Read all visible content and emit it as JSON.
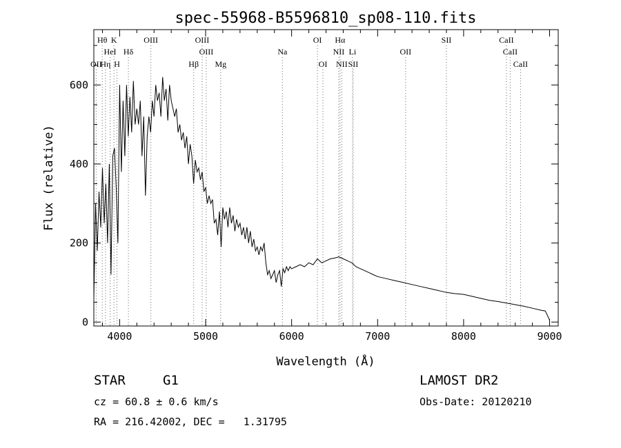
{
  "chart_data": {
    "type": "line",
    "title": "spec-55968-B5596810_sp08-110.fits",
    "xlabel": "Wavelength (Å)",
    "ylabel": "Flux (relative)",
    "xlim": [
      3700,
      9100
    ],
    "ylim": [
      -10,
      740
    ],
    "x_ticks": [
      4000,
      5000,
      6000,
      7000,
      8000,
      9000
    ],
    "y_ticks": [
      0,
      200,
      400,
      600
    ],
    "grid": false,
    "series": [
      {
        "x": [
          3700,
          3720,
          3740,
          3760,
          3780,
          3800,
          3820,
          3840,
          3860,
          3880,
          3900,
          3920,
          3940,
          3960,
          3980,
          4000,
          4020,
          4040,
          4060,
          4080,
          4100,
          4120,
          4140,
          4160,
          4180,
          4200,
          4220,
          4240,
          4260,
          4280,
          4300,
          4320,
          4340,
          4360,
          4380,
          4400,
          4420,
          4440,
          4460,
          4480,
          4500,
          4520,
          4540,
          4560,
          4580,
          4600,
          4620,
          4640,
          4660,
          4680,
          4700,
          4720,
          4740,
          4760,
          4780,
          4800,
          4820,
          4840,
          4860,
          4880,
          4900,
          4920,
          4940,
          4960,
          4980,
          5000,
          5020,
          5040,
          5060,
          5080,
          5100,
          5120,
          5140,
          5160,
          5180,
          5200,
          5220,
          5240,
          5260,
          5280,
          5300,
          5320,
          5340,
          5360,
          5380,
          5400,
          5420,
          5440,
          5460,
          5480,
          5500,
          5520,
          5540,
          5560,
          5580,
          5600,
          5620,
          5640,
          5660,
          5680,
          5700,
          5720,
          5740,
          5760,
          5780,
          5800,
          5820,
          5840,
          5860,
          5880,
          5900,
          5920,
          5940,
          5960,
          5980,
          6000,
          6050,
          6100,
          6150,
          6200,
          6250,
          6300,
          6350,
          6400,
          6450,
          6500,
          6550,
          6600,
          6650,
          6700,
          6750,
          6800,
          6850,
          6900,
          6950,
          7000,
          7100,
          7200,
          7300,
          7400,
          7500,
          7600,
          7700,
          7800,
          7900,
          8000,
          8100,
          8200,
          8300,
          8400,
          8500,
          8550,
          8600,
          8650,
          8700,
          8800,
          8900,
          8950,
          9000
        ],
        "y": [
          60,
          300,
          180,
          330,
          240,
          390,
          250,
          350,
          200,
          400,
          120,
          420,
          440,
          340,
          200,
          600,
          380,
          560,
          420,
          600,
          470,
          570,
          480,
          610,
          500,
          540,
          500,
          560,
          420,
          520,
          320,
          470,
          520,
          480,
          560,
          520,
          600,
          560,
          580,
          520,
          620,
          560,
          590,
          510,
          600,
          560,
          540,
          520,
          540,
          480,
          500,
          460,
          480,
          440,
          470,
          400,
          450,
          420,
          350,
          410,
          380,
          390,
          360,
          380,
          330,
          340,
          300,
          320,
          300,
          310,
          250,
          260,
          220,
          280,
          190,
          290,
          260,
          280,
          240,
          290,
          250,
          270,
          230,
          260,
          240,
          250,
          220,
          240,
          210,
          240,
          200,
          230,
          190,
          210,
          180,
          190,
          170,
          190,
          180,
          200,
          150,
          120,
          130,
          110,
          120,
          130,
          100,
          120,
          130,
          90,
          135,
          125,
          140,
          130,
          140,
          135,
          140,
          145,
          140,
          150,
          145,
          160,
          150,
          155,
          160,
          162,
          165,
          160,
          155,
          150,
          140,
          135,
          130,
          125,
          120,
          115,
          110,
          105,
          100,
          95,
          90,
          85,
          80,
          75,
          72,
          70,
          65,
          60,
          55,
          52,
          48,
          46,
          44,
          42,
          40,
          35,
          30,
          28,
          5
        ]
      }
    ],
    "line_markers": [
      {
        "label": "Hθ",
        "x": 3798,
        "row": 1
      },
      {
        "label": "K",
        "x": 3934,
        "row": 1
      },
      {
        "label": "HeI",
        "x": 3889,
        "row": 2
      },
      {
        "label": "Hδ",
        "x": 4102,
        "row": 2
      },
      {
        "label": "OII",
        "x": 3727,
        "row": 3
      },
      {
        "label": "Hη",
        "x": 3835,
        "row": 3
      },
      {
        "label": "H",
        "x": 3969,
        "row": 3
      },
      {
        "label": "OIII",
        "x": 4363,
        "row": 1
      },
      {
        "label": "OIII",
        "x": 4959,
        "row": 1
      },
      {
        "label": "OIII",
        "x": 5007,
        "row": 2
      },
      {
        "label": "Hβ",
        "x": 4861,
        "row": 3
      },
      {
        "label": "Mg",
        "x": 5175,
        "row": 3
      },
      {
        "label": "Na",
        "x": 5893,
        "row": 2
      },
      {
        "label": "OI",
        "x": 6300,
        "row": 1
      },
      {
        "label": "OI",
        "x": 6364,
        "row": 3
      },
      {
        "label": "Hα",
        "x": 6563,
        "row": 1
      },
      {
        "label": "NII",
        "x": 6548,
        "row": 2
      },
      {
        "label": "Li",
        "x": 6708,
        "row": 2
      },
      {
        "label": "NII",
        "x": 6583,
        "row": 3
      },
      {
        "label": "SII",
        "x": 6716,
        "row": 3
      },
      {
        "label": "OII",
        "x": 7325,
        "row": 2
      },
      {
        "label": "SII",
        "x": 7800,
        "row": 1
      },
      {
        "label": "CaII",
        "x": 8498,
        "row": 1
      },
      {
        "label": "CaII",
        "x": 8542,
        "row": 2
      },
      {
        "label": "CaII",
        "x": 8662,
        "row": 3
      }
    ]
  },
  "info": {
    "object_class": "STAR",
    "subclass": "G1",
    "survey": "LAMOST DR2",
    "redshift": "cz = 60.8 ± 0.6 km/s",
    "obs_date": "Obs-Date: 20120210",
    "coords": "RA = 216.42002, DEC =   1.31795"
  }
}
